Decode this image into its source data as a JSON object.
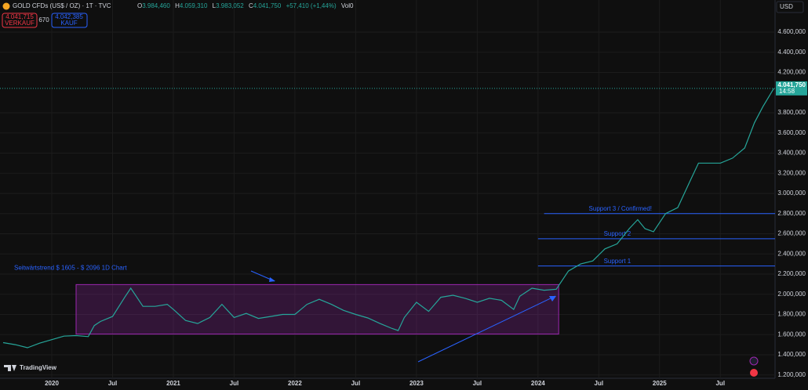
{
  "header": {
    "symbol": "GOLD CFDs (US$ / OZ) · 1T · TVC",
    "open_label": "O",
    "open": "3.984,460",
    "high_label": "H",
    "high": "4.059,310",
    "low_label": "L",
    "low": "3.983,052",
    "close_label": "C",
    "close": "4.041,750",
    "change": "+57,410 (+1,44%)",
    "volume": "Vol0",
    "sell_price": "4.041,715",
    "sell_label": "VERKAUF",
    "spread": "670",
    "buy_price": "4.042,385",
    "buy_label": "KAUF",
    "currency": "USD",
    "brand": "TradingView"
  },
  "chart_data": {
    "type": "line",
    "color": "#26a69a",
    "x": [
      2019.6,
      2019.7,
      2019.8,
      2019.9,
      2020.0,
      2020.1,
      2020.2,
      2020.3,
      2020.35,
      2020.4,
      2020.5,
      2020.6,
      2020.65,
      2020.7,
      2020.75,
      2020.85,
      2020.95,
      2021.0,
      2021.1,
      2021.2,
      2021.3,
      2021.4,
      2021.5,
      2021.6,
      2021.7,
      2021.8,
      2021.9,
      2022.0,
      2022.1,
      2022.2,
      2022.3,
      2022.4,
      2022.5,
      2022.6,
      2022.7,
      2022.8,
      2022.85,
      2022.9,
      2023.0,
      2023.1,
      2023.2,
      2023.3,
      2023.4,
      2023.5,
      2023.6,
      2023.7,
      2023.8,
      2023.85,
      2023.95,
      2024.05,
      2024.15,
      2024.25,
      2024.35,
      2024.45,
      2024.55,
      2024.65,
      2024.75,
      2024.82,
      2024.88,
      2024.95,
      2025.05,
      2025.15,
      2025.25,
      2025.32,
      2025.4,
      2025.5,
      2025.6,
      2025.7,
      2025.78,
      2025.85,
      2025.94
    ],
    "values": [
      1520,
      1500,
      1470,
      1515,
      1550,
      1585,
      1590,
      1580,
      1690,
      1730,
      1780,
      1970,
      2060,
      1970,
      1880,
      1880,
      1900,
      1850,
      1740,
      1710,
      1770,
      1900,
      1770,
      1810,
      1760,
      1780,
      1800,
      1800,
      1900,
      1950,
      1900,
      1840,
      1800,
      1765,
      1710,
      1660,
      1640,
      1770,
      1920,
      1830,
      1970,
      1990,
      1960,
      1920,
      1960,
      1940,
      1850,
      1980,
      2060,
      2040,
      2050,
      2230,
      2300,
      2330,
      2450,
      2500,
      2650,
      2740,
      2650,
      2620,
      2800,
      2860,
      3120,
      3300,
      3300,
      3300,
      3350,
      3450,
      3700,
      3860,
      4041.75
    ],
    "xlim": [
      2019.574,
      2025.95
    ],
    "ylim": [
      1167,
      4918
    ],
    "xticks": [
      2020,
      {
        "value": 2020.5,
        "label": "Jul"
      },
      2021,
      {
        "value": 2021.5,
        "label": "Jul"
      },
      2022,
      {
        "value": 2022.5,
        "label": "Jul"
      },
      2023,
      {
        "value": 2023.5,
        "label": "Jul"
      },
      2024,
      {
        "value": 2024.5,
        "label": "Jul"
      },
      2025,
      {
        "value": 2025.5,
        "label": "Jul"
      }
    ],
    "yticks": [
      {
        "value": 1200,
        "label": "1.200,000"
      },
      {
        "value": 1400,
        "label": "1.400,000"
      },
      {
        "value": 1600,
        "label": "1.600,000"
      },
      {
        "value": 1800,
        "label": "1.800,000"
      },
      {
        "value": 2000,
        "label": "2.000,000"
      },
      {
        "value": 2200,
        "label": "2.200,000"
      },
      {
        "value": 2400,
        "label": "2.400,000"
      },
      {
        "value": 2600,
        "label": "2.600,000"
      },
      {
        "value": 2800,
        "label": "2.800,000"
      },
      {
        "value": 3000,
        "label": "3.000,000"
      },
      {
        "value": 3200,
        "label": "3.200,000"
      },
      {
        "value": 3400,
        "label": "3.400,000"
      },
      {
        "value": 3600,
        "label": "3.600,000"
      },
      {
        "value": 3800,
        "label": "3.800,000"
      },
      {
        "value": 4200,
        "label": "4.200,000"
      },
      {
        "value": 4400,
        "label": "4.400,000"
      },
      {
        "value": 4600,
        "label": "4.600,000"
      }
    ],
    "last": {
      "value": 4041.75,
      "label": "4.041,750",
      "time": "14:58"
    },
    "range_box": {
      "label": "Seitwärtstrend $ 1605 - $ 2096 1D Chart",
      "low": 1605,
      "high": 2096,
      "x": [
        2020.2,
        2024.17
      ]
    },
    "supports": [
      {
        "label": "Support 1",
        "value": 2280,
        "x": [
          2024.0,
          2025.95
        ]
      },
      {
        "label": "Support 2",
        "value": 2550,
        "x": [
          2024.0,
          2025.95
        ]
      },
      {
        "label": "Support 3 / Confirmed!",
        "value": 2800,
        "x": [
          2024.05,
          2025.95
        ]
      }
    ]
  }
}
